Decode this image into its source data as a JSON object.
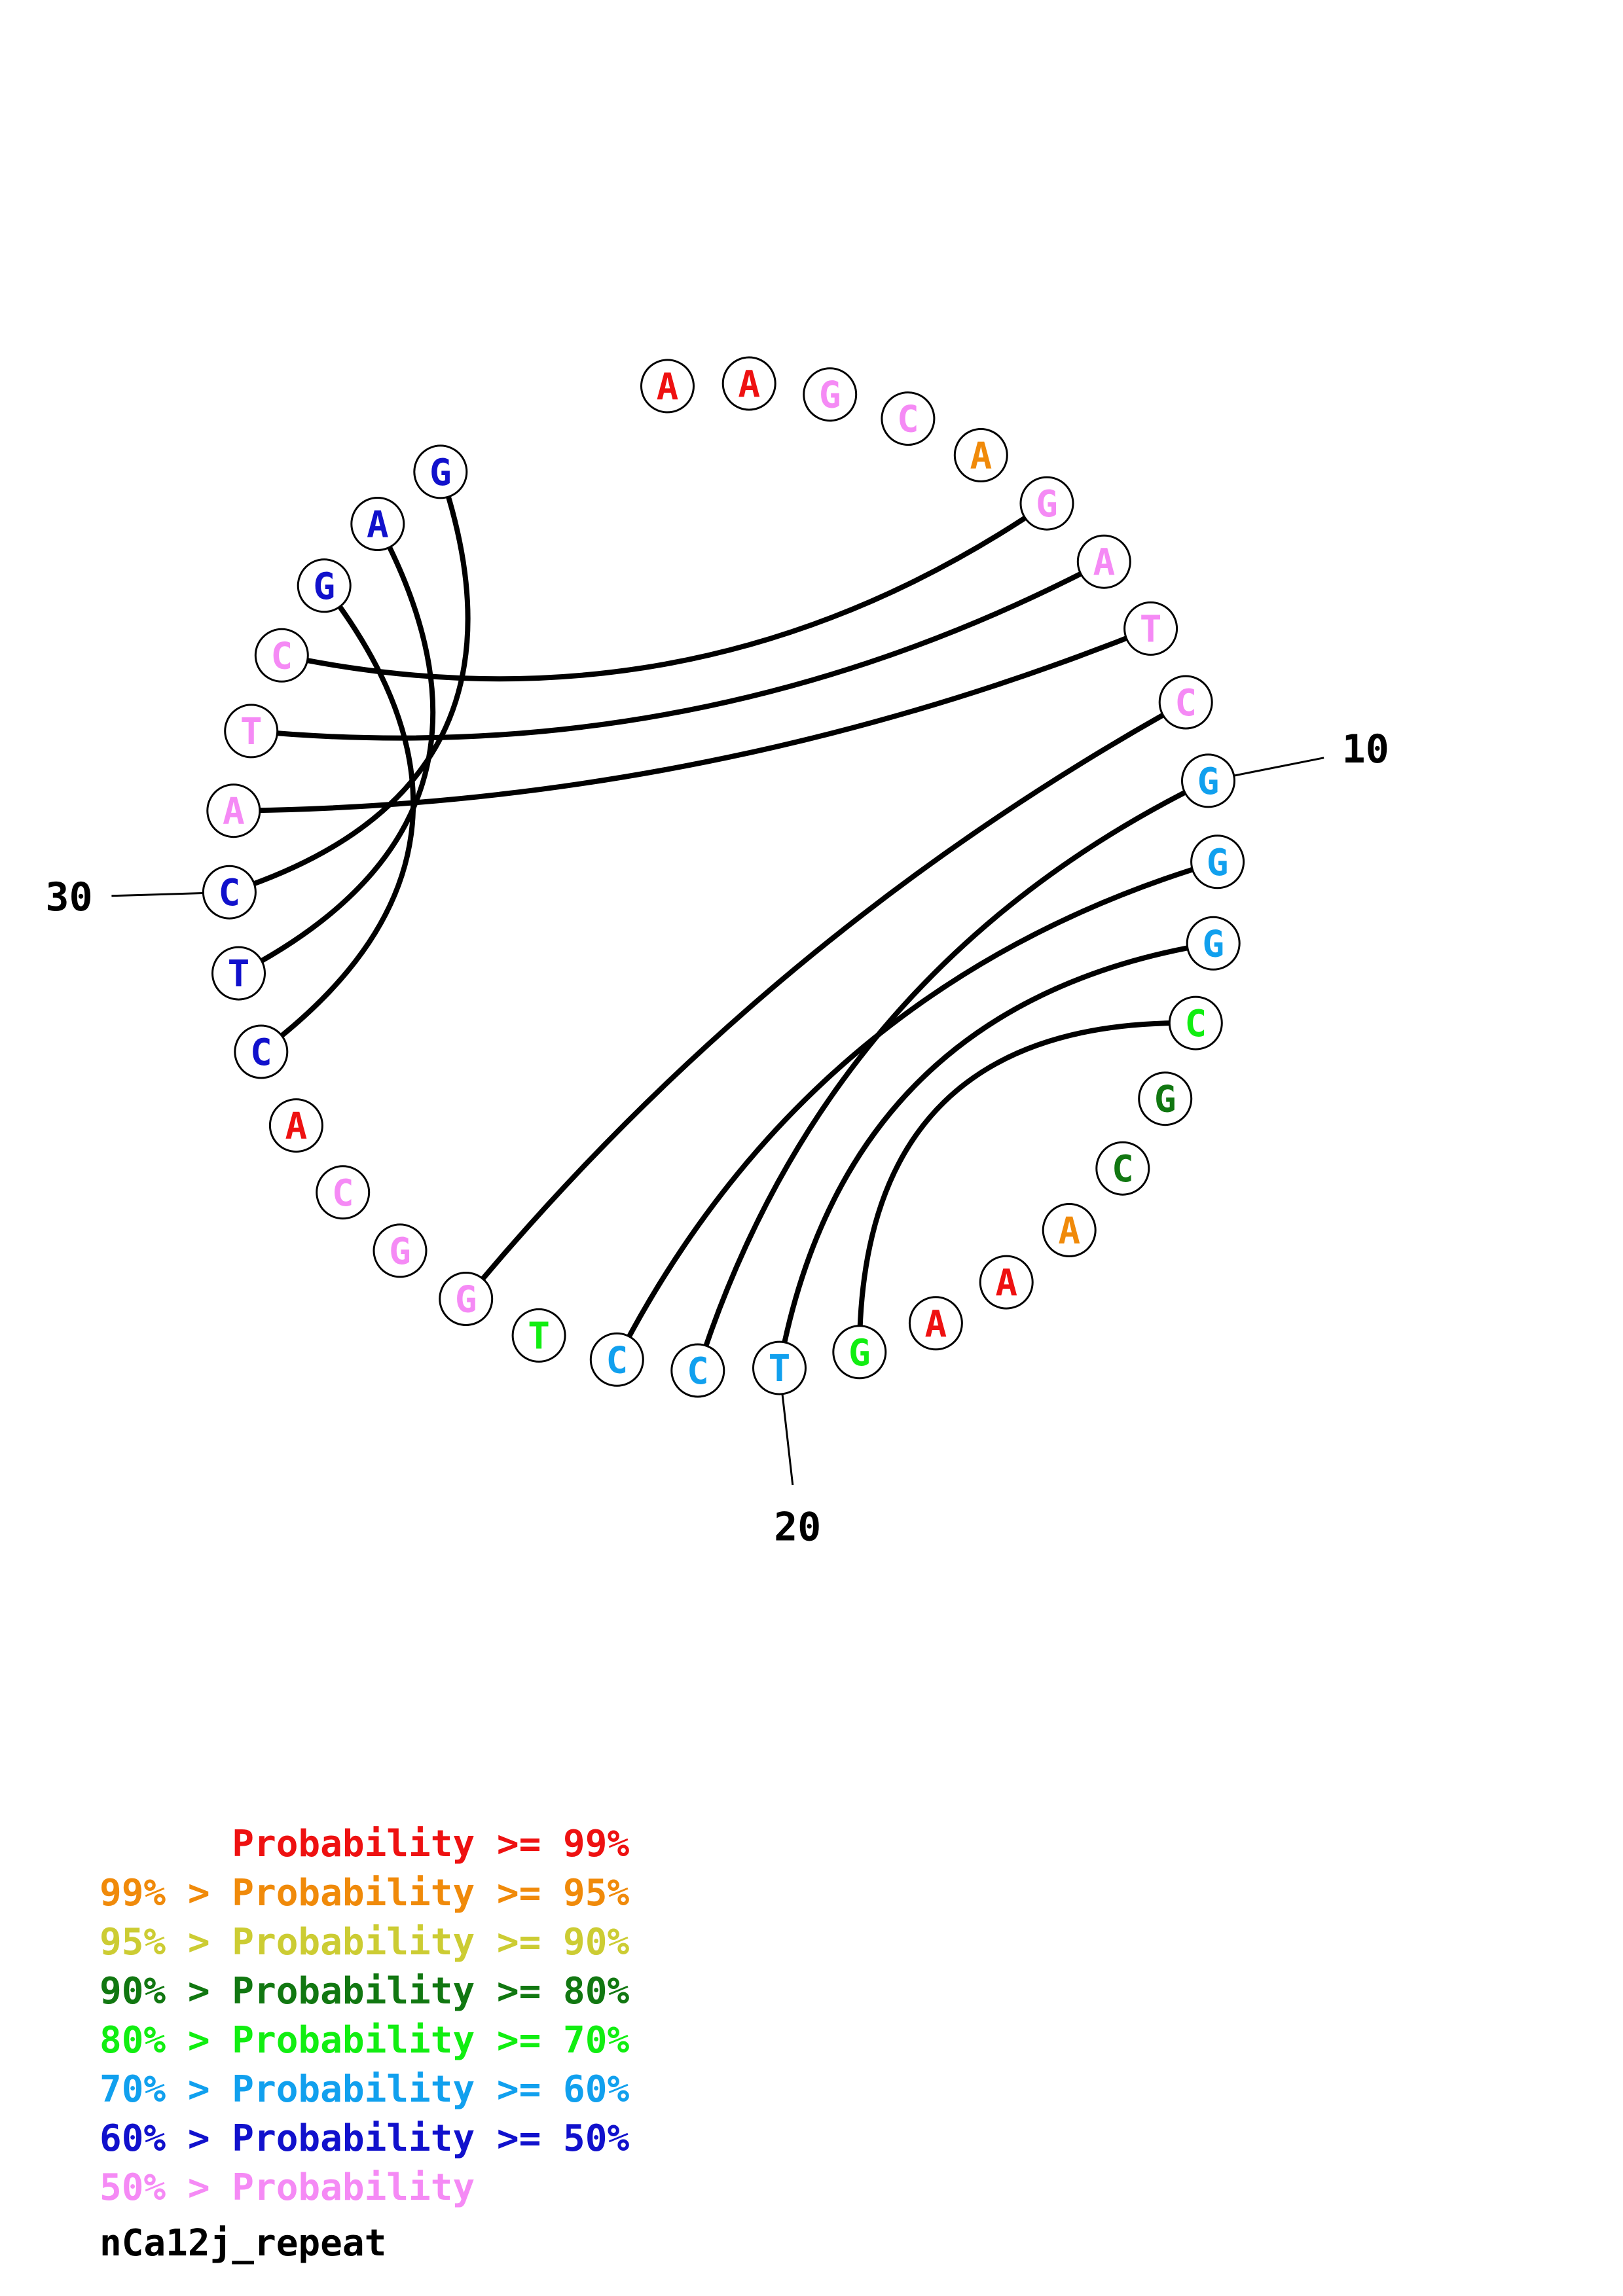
{
  "colors": {
    "p99": "#ee1111",
    "p95": "#f08a0a",
    "p90": "#cccc33",
    "p80": "#117711",
    "p70": "#11ee11",
    "p60": "#11a0ee",
    "p50": "#1111cc",
    "plow": "#f58af5"
  },
  "sequence": [
    {
      "index": 1,
      "base": "A",
      "level": "p99"
    },
    {
      "index": 2,
      "base": "A",
      "level": "p99"
    },
    {
      "index": 3,
      "base": "G",
      "level": "plow"
    },
    {
      "index": 4,
      "base": "C",
      "level": "plow"
    },
    {
      "index": 5,
      "base": "A",
      "level": "p95"
    },
    {
      "index": 6,
      "base": "G",
      "level": "plow"
    },
    {
      "index": 7,
      "base": "A",
      "level": "plow"
    },
    {
      "index": 8,
      "base": "T",
      "level": "plow"
    },
    {
      "index": 9,
      "base": "C",
      "level": "plow"
    },
    {
      "index": 10,
      "base": "G",
      "level": "p60"
    },
    {
      "index": 11,
      "base": "G",
      "level": "p60"
    },
    {
      "index": 12,
      "base": "G",
      "level": "p60"
    },
    {
      "index": 13,
      "base": "C",
      "level": "p70"
    },
    {
      "index": 14,
      "base": "G",
      "level": "p80"
    },
    {
      "index": 15,
      "base": "C",
      "level": "p80"
    },
    {
      "index": 16,
      "base": "A",
      "level": "p95"
    },
    {
      "index": 17,
      "base": "A",
      "level": "p99"
    },
    {
      "index": 18,
      "base": "A",
      "level": "p99"
    },
    {
      "index": 19,
      "base": "G",
      "level": "p70"
    },
    {
      "index": 20,
      "base": "T",
      "level": "p60"
    },
    {
      "index": 21,
      "base": "C",
      "level": "p60"
    },
    {
      "index": 22,
      "base": "C",
      "level": "p60"
    },
    {
      "index": 23,
      "base": "T",
      "level": "p70"
    },
    {
      "index": 24,
      "base": "G",
      "level": "plow"
    },
    {
      "index": 25,
      "base": "G",
      "level": "plow"
    },
    {
      "index": 26,
      "base": "C",
      "level": "plow"
    },
    {
      "index": 27,
      "base": "A",
      "level": "p99"
    },
    {
      "index": 28,
      "base": "C",
      "level": "p50"
    },
    {
      "index": 29,
      "base": "T",
      "level": "p50"
    },
    {
      "index": 30,
      "base": "C",
      "level": "p50"
    },
    {
      "index": 31,
      "base": "A",
      "level": "plow"
    },
    {
      "index": 32,
      "base": "T",
      "level": "plow"
    },
    {
      "index": 33,
      "base": "C",
      "level": "plow"
    },
    {
      "index": 34,
      "base": "G",
      "level": "p50"
    },
    {
      "index": 35,
      "base": "A",
      "level": "p50"
    },
    {
      "index": 36,
      "base": "G",
      "level": "p50"
    }
  ],
  "pairs": [
    [
      6,
      33
    ],
    [
      7,
      32
    ],
    [
      8,
      31
    ],
    [
      9,
      24
    ],
    [
      10,
      21
    ],
    [
      11,
      22
    ],
    [
      12,
      20
    ],
    [
      13,
      19
    ],
    [
      28,
      34
    ],
    [
      29,
      35
    ],
    [
      30,
      36
    ]
  ],
  "position_labels": [
    {
      "index": 10,
      "text": "10"
    },
    {
      "index": 20,
      "text": "20"
    },
    {
      "index": 30,
      "text": "30"
    }
  ],
  "legend": [
    {
      "prefix": "",
      "main": "Probability",
      "suffix": ">= 99%",
      "level": "p99"
    },
    {
      "prefix": "99% >",
      "main": "Probability",
      "suffix": ">= 95%",
      "level": "p95"
    },
    {
      "prefix": "95% >",
      "main": "Probability",
      "suffix": ">= 90%",
      "level": "p90"
    },
    {
      "prefix": "90% >",
      "main": "Probability",
      "suffix": ">= 80%",
      "level": "p80"
    },
    {
      "prefix": "80% >",
      "main": "Probability",
      "suffix": ">= 70%",
      "level": "p70"
    },
    {
      "prefix": "70% >",
      "main": "Probability",
      "suffix": ">= 60%",
      "level": "p60"
    },
    {
      "prefix": "60% >",
      "main": "Probability",
      "suffix": ">= 50%",
      "level": "p50"
    },
    {
      "prefix": "50% >",
      "main": "Probability",
      "suffix": "",
      "level": "plow"
    }
  ],
  "sequence_name": "nCa12j_repeat"
}
